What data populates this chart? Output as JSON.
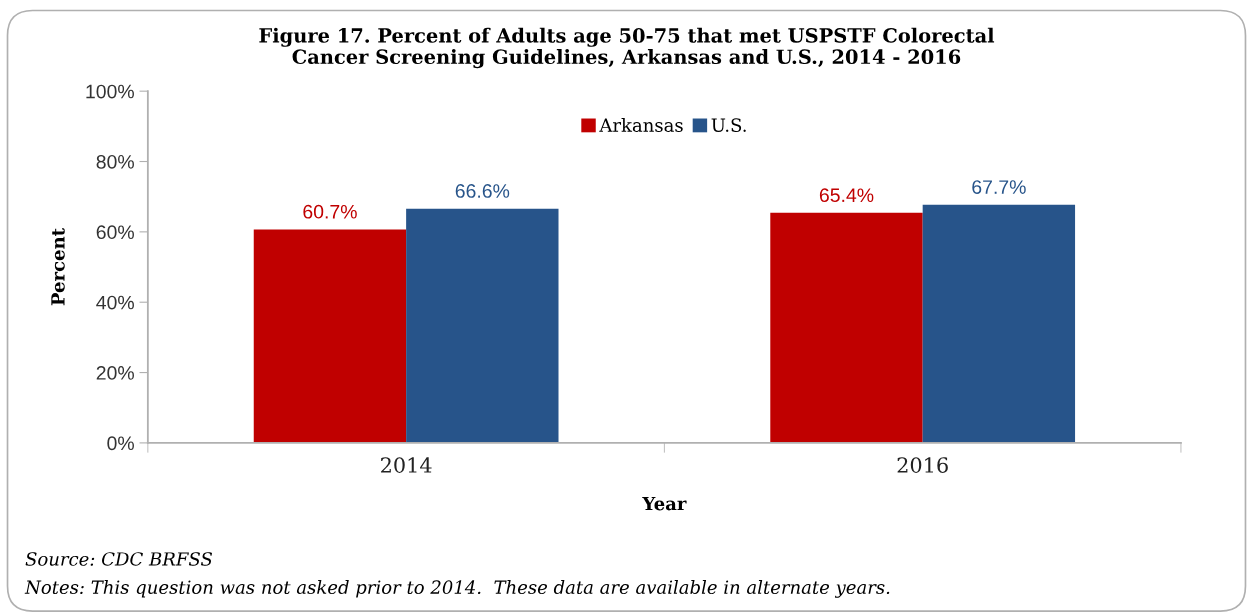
{
  "chart_data": {
    "type": "bar",
    "title": "Figure 17. Percent of Adults age 50-75 that met USPSTF Colorectal\nCancer Screening Guidelines, Arkansas and U.S., 2014 - 2016",
    "xlabel": "Year",
    "ylabel": "Percent",
    "categories": [
      "2014",
      "2016"
    ],
    "series": [
      {
        "name": "Arkansas",
        "color": "#c00000",
        "values": [
          60.7,
          65.4
        ],
        "value_labels": [
          "60.7%",
          "65.4%"
        ]
      },
      {
        "name": "U.S.",
        "color": "#27548a",
        "values": [
          66.6,
          67.7
        ],
        "value_labels": [
          "66.6%",
          "67.7%"
        ]
      }
    ],
    "ylim": [
      0,
      100
    ],
    "yticks": [
      {
        "value": 0,
        "label": "0%"
      },
      {
        "value": 20,
        "label": "20%"
      },
      {
        "value": 40,
        "label": "40%"
      },
      {
        "value": 60,
        "label": "60%"
      },
      {
        "value": 80,
        "label": "80%"
      },
      {
        "value": 100,
        "label": "100%"
      }
    ],
    "grid": false,
    "legend": "top",
    "annotations": [
      "Source: CDC BRFSS",
      "Notes: This question was not asked prior to 2014.  These data are available in alternate years."
    ]
  }
}
